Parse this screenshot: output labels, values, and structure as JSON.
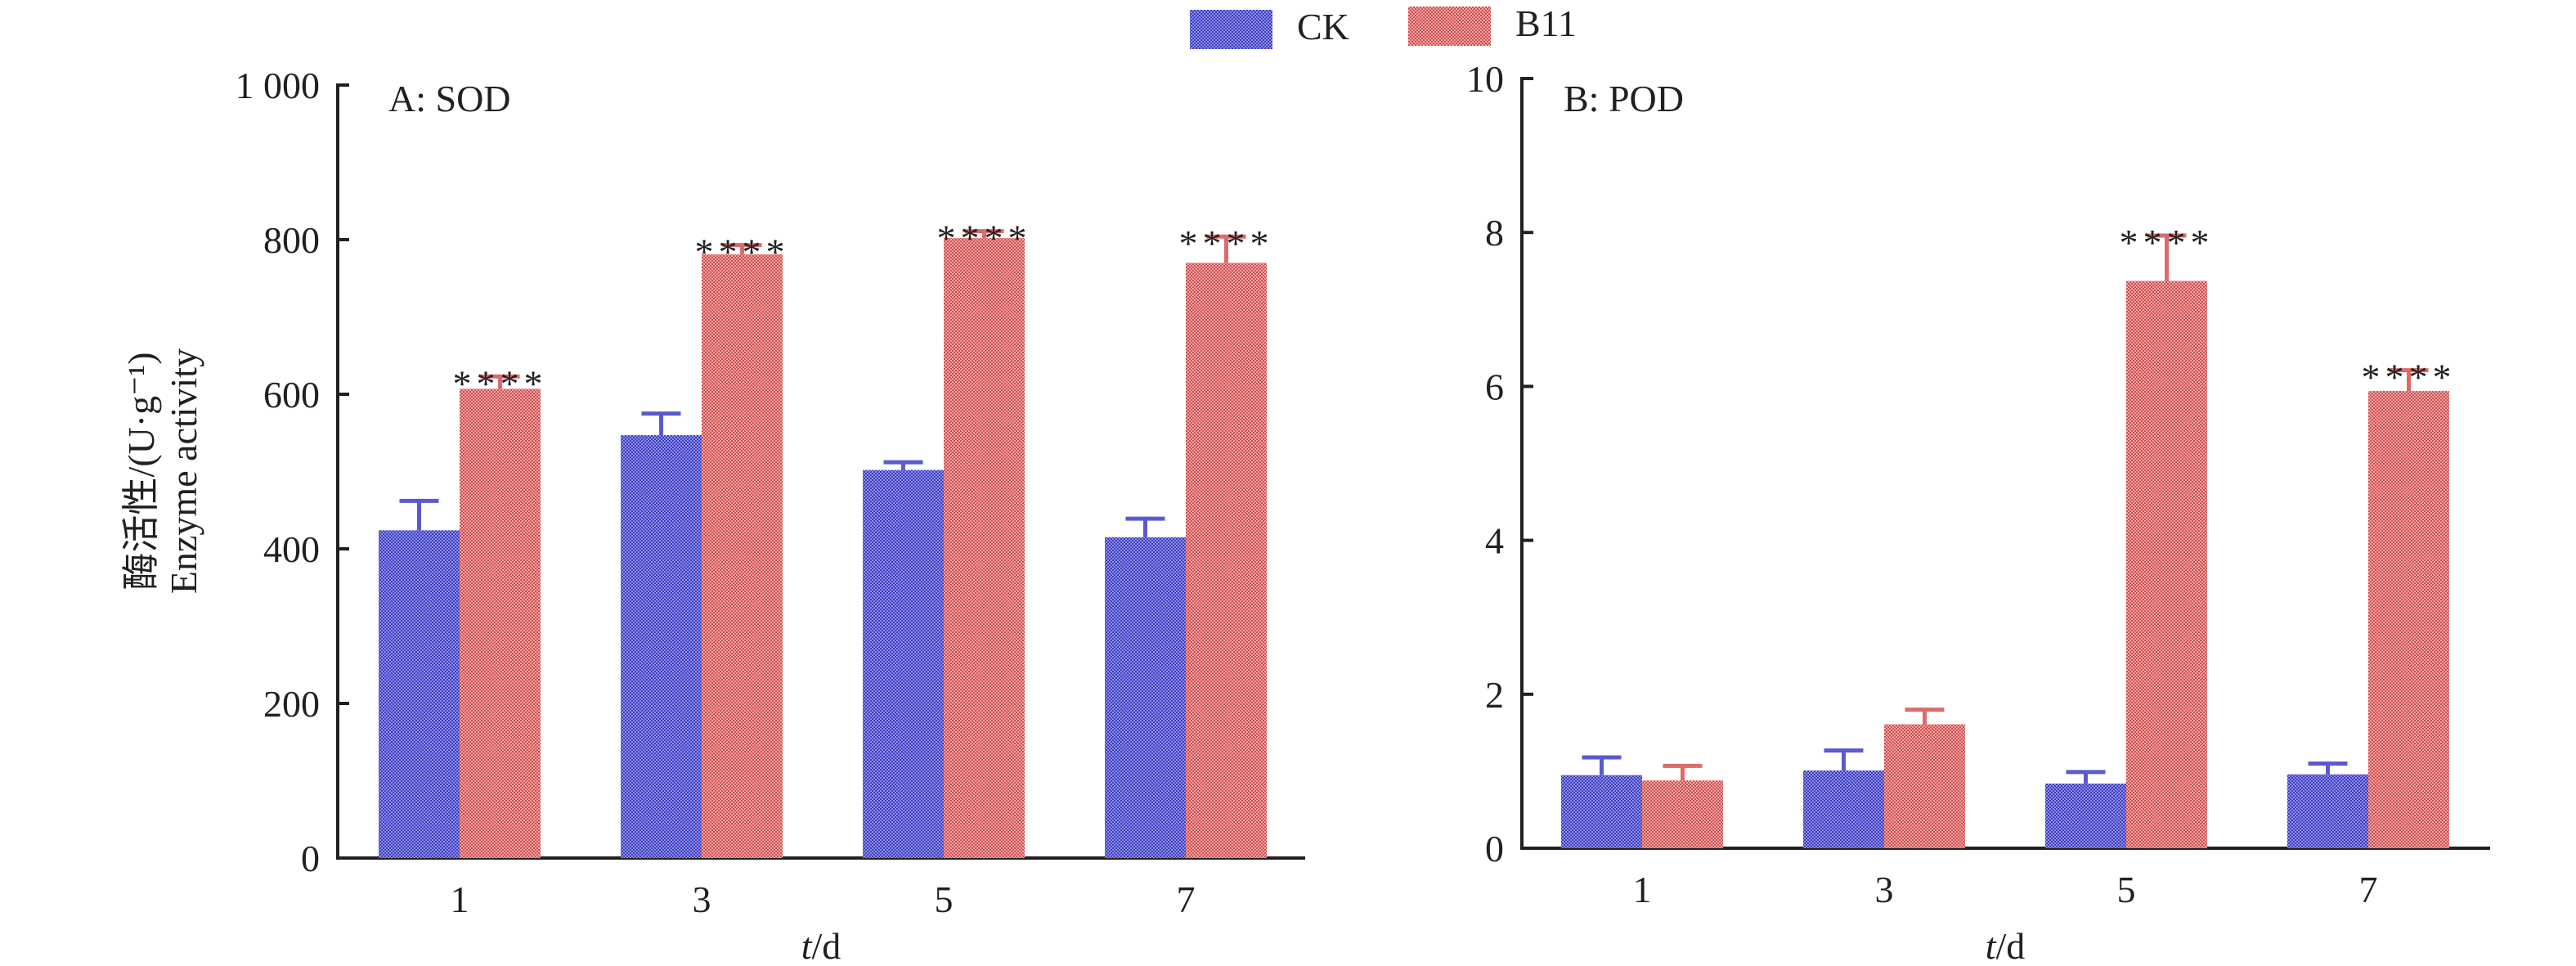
{
  "legend": {
    "items": [
      {
        "name": "CK",
        "color": "#6b6bd6"
      },
      {
        "name": "B11",
        "color": "#e07878"
      }
    ],
    "placement": "top-center"
  },
  "chart_data": [
    {
      "type": "bar",
      "panel_label": "A: SOD",
      "categories": [
        "1",
        "3",
        "5",
        "7"
      ],
      "xlabel_italic": "t",
      "xlabel_rest": "/d",
      "ylabel_cn": "酶活性/(U·g⁻¹)",
      "ylabel_en": "Enzyme activity",
      "ylim": [
        0,
        1000
      ],
      "yticks": [
        0,
        200,
        400,
        600,
        800,
        1000
      ],
      "ytick_labels": [
        "0",
        "200",
        "400",
        "600",
        "800",
        "1 000"
      ],
      "grid": false,
      "series": [
        {
          "name": "CK",
          "values": [
            424,
            547,
            502,
            415
          ],
          "error": [
            38,
            28,
            10,
            24
          ],
          "significance": [
            "",
            "",
            "",
            ""
          ]
        },
        {
          "name": "B11",
          "values": [
            607,
            781,
            802,
            770
          ],
          "error": [
            16,
            12,
            9,
            34
          ],
          "significance": [
            "****",
            "****",
            "****",
            "****"
          ]
        }
      ]
    },
    {
      "type": "bar",
      "panel_label": "B: POD",
      "categories": [
        "1",
        "3",
        "5",
        "7"
      ],
      "xlabel_italic": "t",
      "xlabel_rest": "/d",
      "ylabel_cn": "",
      "ylabel_en": "",
      "ylim": [
        0,
        10
      ],
      "yticks": [
        0,
        2,
        4,
        6,
        8,
        10
      ],
      "ytick_labels": [
        "0",
        "2",
        "4",
        "6",
        "8",
        "10"
      ],
      "grid": false,
      "series": [
        {
          "name": "CK",
          "values": [
            0.95,
            1.01,
            0.84,
            0.96
          ],
          "error": [
            0.23,
            0.26,
            0.15,
            0.14
          ],
          "significance": [
            "",
            "",
            "",
            ""
          ]
        },
        {
          "name": "B11",
          "values": [
            0.88,
            1.61,
            7.37,
            5.94
          ],
          "error": [
            0.19,
            0.19,
            0.59,
            0.27
          ],
          "significance": [
            "",
            "",
            "****",
            "****"
          ]
        }
      ]
    }
  ]
}
